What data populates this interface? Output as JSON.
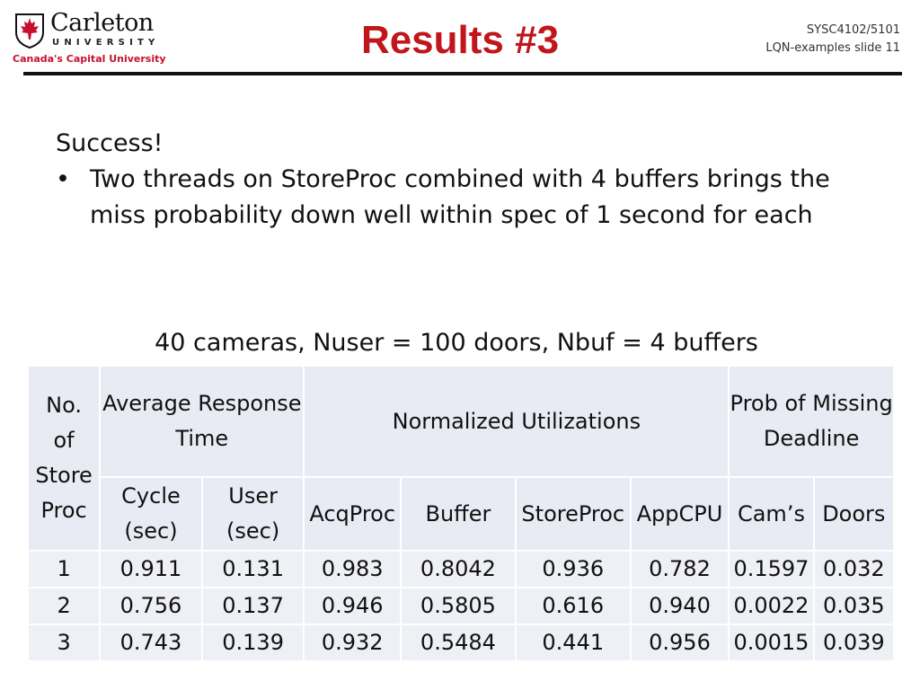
{
  "header": {
    "logo": {
      "name": "Carleton",
      "university": "UNIVERSITY",
      "tagline": "Canada's Capital University"
    },
    "title": "Results #3",
    "course_code": "SYSC4102/5101",
    "slide_ref": "LQN-examples slide 11"
  },
  "content": {
    "intro": "Success!",
    "bullets": [
      "Two threads on StoreProc combined with 4 buffers brings the miss probability down well within spec of 1 second for each"
    ]
  },
  "table": {
    "caption": "40 cameras, Nuser = 100 doors, Nbuf = 4 buffers",
    "col_first_lines": [
      "No.",
      "of",
      "Store",
      "Proc"
    ],
    "group_response_lines": [
      "Average Response",
      "Time"
    ],
    "group_util": "Normalized Utilizations",
    "group_prob_lines": [
      "Prob of Missing",
      "Deadline"
    ],
    "sub_cycle_lines": [
      "Cycle",
      "(sec)"
    ],
    "sub_user_lines": [
      "User",
      "(sec)"
    ],
    "sub_acqproc": "AcqProc",
    "sub_buffer": "Buffer",
    "sub_storeproc": "StoreProc",
    "sub_appcpu": "AppCPU",
    "sub_cams": "Cam’s",
    "sub_doors": "Doors",
    "rows": [
      [
        "1",
        "0.911",
        "0.131",
        "0.983",
        "0.8042",
        "0.936",
        "0.782",
        "0.1597",
        "0.032"
      ],
      [
        "2",
        "0.756",
        "0.137",
        "0.946",
        "0.5805",
        "0.616",
        "0.940",
        "0.0022",
        "0.035"
      ],
      [
        "3",
        "0.743",
        "0.139",
        "0.932",
        "0.5484",
        "0.441",
        "0.956",
        "0.0015",
        "0.039"
      ]
    ]
  },
  "colors": {
    "title": "#c0161c",
    "cell_bg": "#e8ebf3",
    "rule": "#111111"
  }
}
